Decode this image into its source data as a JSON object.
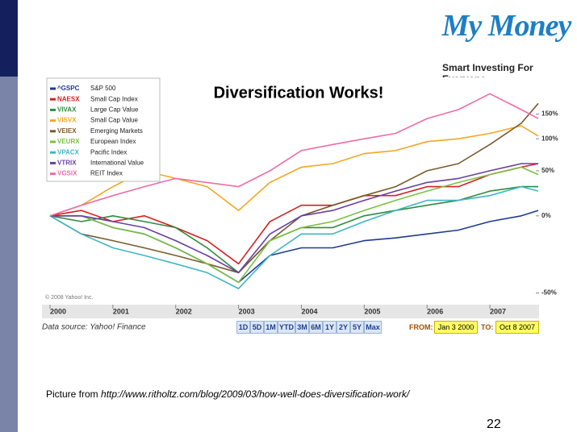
{
  "slide": {
    "logo": "My Money",
    "tagline": "Smart Investing For Everyone.",
    "caption_prefix": "Picture from ",
    "caption_url": "http://www.ritholtz.com/blog/2009/03/how-well-does-diversification-work/",
    "page_number": "22"
  },
  "chart_data": {
    "type": "line",
    "title": "Diversification Works!",
    "copyright": "© 2008 Yahoo! Inc.",
    "source": "Data source: Yahoo! Finance",
    "log_scale": true,
    "grid": false,
    "legend": "top-left",
    "x": [
      2000,
      2000.5,
      2001,
      2001.5,
      2002,
      2002.5,
      2003,
      2003.5,
      2004,
      2004.5,
      2005,
      2005.5,
      2006,
      2006.5,
      2007,
      2007.5,
      2007.77
    ],
    "xlim": [
      2000,
      2007.77
    ],
    "xticks": [
      2000,
      2001,
      2002,
      2003,
      2004,
      2005,
      2006,
      2007
    ],
    "ylim": [
      -55,
      245
    ],
    "yticks": [
      {
        "value": -50,
        "label": "-50%"
      },
      {
        "value": 0,
        "label": "0%"
      },
      {
        "value": 50,
        "label": "50%"
      },
      {
        "value": 100,
        "label": "100%"
      },
      {
        "value": 150,
        "label": "150%"
      }
    ],
    "series": [
      {
        "code": "^GSPC",
        "name": "S&P 500",
        "color": "#1f3a93",
        "values": [
          0,
          0,
          -10,
          -15,
          -25,
          -35,
          -45,
          -30,
          -25,
          -25,
          -20,
          -18,
          -15,
          -12,
          -5,
          0,
          5
        ]
      },
      {
        "code": "NAESX",
        "name": "Small Cap Index",
        "color": "#d42020",
        "values": [
          0,
          5,
          -5,
          0,
          -10,
          -20,
          -35,
          -5,
          10,
          10,
          20,
          20,
          30,
          30,
          45,
          55,
          60
        ]
      },
      {
        "code": "VIVAX",
        "name": "Large Cap Value",
        "color": "#2e8b3e",
        "values": [
          0,
          -5,
          0,
          -5,
          -10,
          -25,
          -40,
          -20,
          -10,
          -10,
          0,
          5,
          10,
          15,
          25,
          30,
          30
        ]
      },
      {
        "code": "VISVX",
        "name": "Small Cap Value",
        "color": "#f5a623",
        "values": [
          0,
          10,
          30,
          50,
          40,
          30,
          5,
          35,
          55,
          60,
          75,
          80,
          95,
          100,
          110,
          125,
          105
        ]
      },
      {
        "code": "VEIEX",
        "name": "Emerging Markets",
        "color": "#7b5a2a",
        "values": [
          0,
          -15,
          -20,
          -25,
          -30,
          -35,
          -40,
          -20,
          0,
          10,
          20,
          30,
          50,
          60,
          90,
          130,
          175
        ]
      },
      {
        "code": "VEURX",
        "name": "European Index",
        "color": "#7bc043",
        "values": [
          0,
          0,
          -10,
          -15,
          -25,
          -35,
          -45,
          -20,
          -10,
          -5,
          5,
          15,
          25,
          35,
          45,
          55,
          45
        ]
      },
      {
        "code": "VPACX",
        "name": "Pacific Index",
        "color": "#3fb6c8",
        "values": [
          0,
          -15,
          -25,
          -30,
          -35,
          -40,
          -48,
          -30,
          -15,
          -15,
          -5,
          5,
          15,
          15,
          20,
          30,
          25
        ]
      },
      {
        "code": "VTRIX",
        "name": "International Value",
        "color": "#6a3ea1",
        "values": [
          0,
          0,
          -5,
          -10,
          -20,
          -30,
          -40,
          -15,
          0,
          5,
          15,
          25,
          35,
          40,
          50,
          60,
          60
        ]
      },
      {
        "code": "VGSIX",
        "name": "REIT Index",
        "color": "#f06ba8",
        "values": [
          0,
          10,
          20,
          30,
          40,
          35,
          30,
          50,
          80,
          90,
          100,
          110,
          140,
          160,
          200,
          160,
          140
        ]
      }
    ]
  },
  "controls": {
    "ranges": [
      "1D",
      "5D",
      "1M",
      "YTD",
      "3M",
      "6M",
      "1Y",
      "2Y",
      "5Y",
      "Max"
    ],
    "from_label": "FROM:",
    "from": "Jan 3 2000",
    "to_label": "TO:",
    "to": "Oct 8 2007"
  }
}
